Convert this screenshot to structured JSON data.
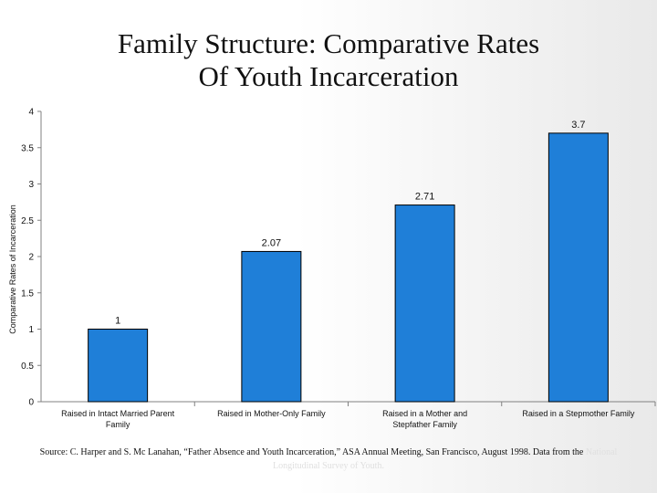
{
  "title_line1": "Family Structure: Comparative Rates",
  "title_line2": "Of Youth Incarceration",
  "source_text": "Source: C. Harper and S. Mc Lanahan, “Father Absence and Youth Incarceration,” ASA Annual Meeting, San Francisco, August 1998. Data from the",
  "source_faded": "National Longitudinal Survey of Youth.",
  "colors": {
    "bar": "#1f7fd8",
    "bar_edge": "#000000",
    "axis": "#808080",
    "text": "#111111"
  },
  "chart_data": {
    "type": "bar",
    "title": "Family Structure: Comparative Rates Of Youth Incarceration",
    "xlabel": "",
    "ylabel": "Comparative Rates of Incarceration",
    "categories": [
      [
        "Raised in Intact Married Parent",
        "Family"
      ],
      [
        "Raised in Mother-Only Family"
      ],
      [
        "Raised in a Mother and",
        "Stepfather Family"
      ],
      [
        "Raised in a Stepmother Family"
      ]
    ],
    "values": [
      1,
      2.07,
      2.71,
      3.7
    ],
    "data_labels": [
      "1",
      "2.07",
      "2.71",
      "3.7"
    ],
    "ylim": [
      0,
      4
    ],
    "yticks": [
      "0",
      "0.5",
      "1",
      "1.5",
      "2",
      "2.5",
      "3",
      "3.5",
      "4"
    ],
    "grid": false,
    "legend": "none"
  }
}
